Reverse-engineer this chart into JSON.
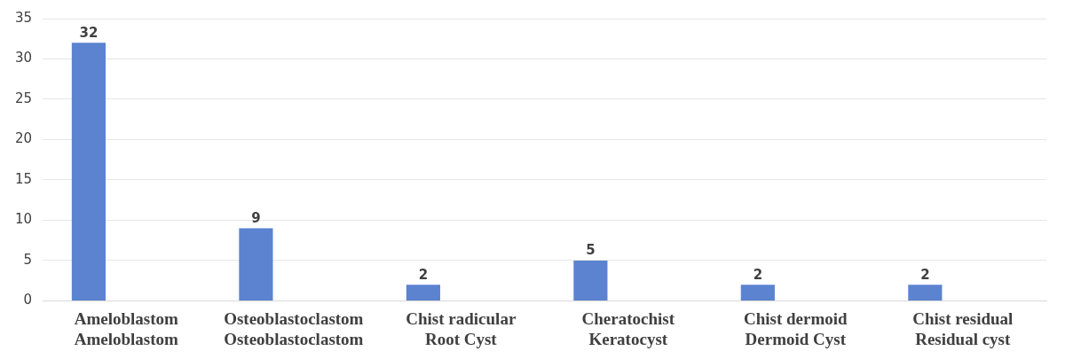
{
  "chart_data": {
    "type": "bar",
    "categories": [
      "Ameloblastom\nAmeloblastom",
      "Osteoblastoclastom\nOsteoblastoclastom",
      "Chist radicular\nRoot Cyst",
      "Cheratochist\nKeratocyst",
      "Chist dermoid\nDermoid Cyst",
      "Chist residual\nResidual cyst"
    ],
    "values": [
      32,
      9,
      2,
      5,
      2,
      2
    ],
    "color": "#5b83d0",
    "ylim": [
      0,
      35
    ],
    "yticks": [
      0,
      5,
      10,
      15,
      20,
      25,
      30,
      35
    ],
    "grid": "y",
    "data_labels": true
  }
}
